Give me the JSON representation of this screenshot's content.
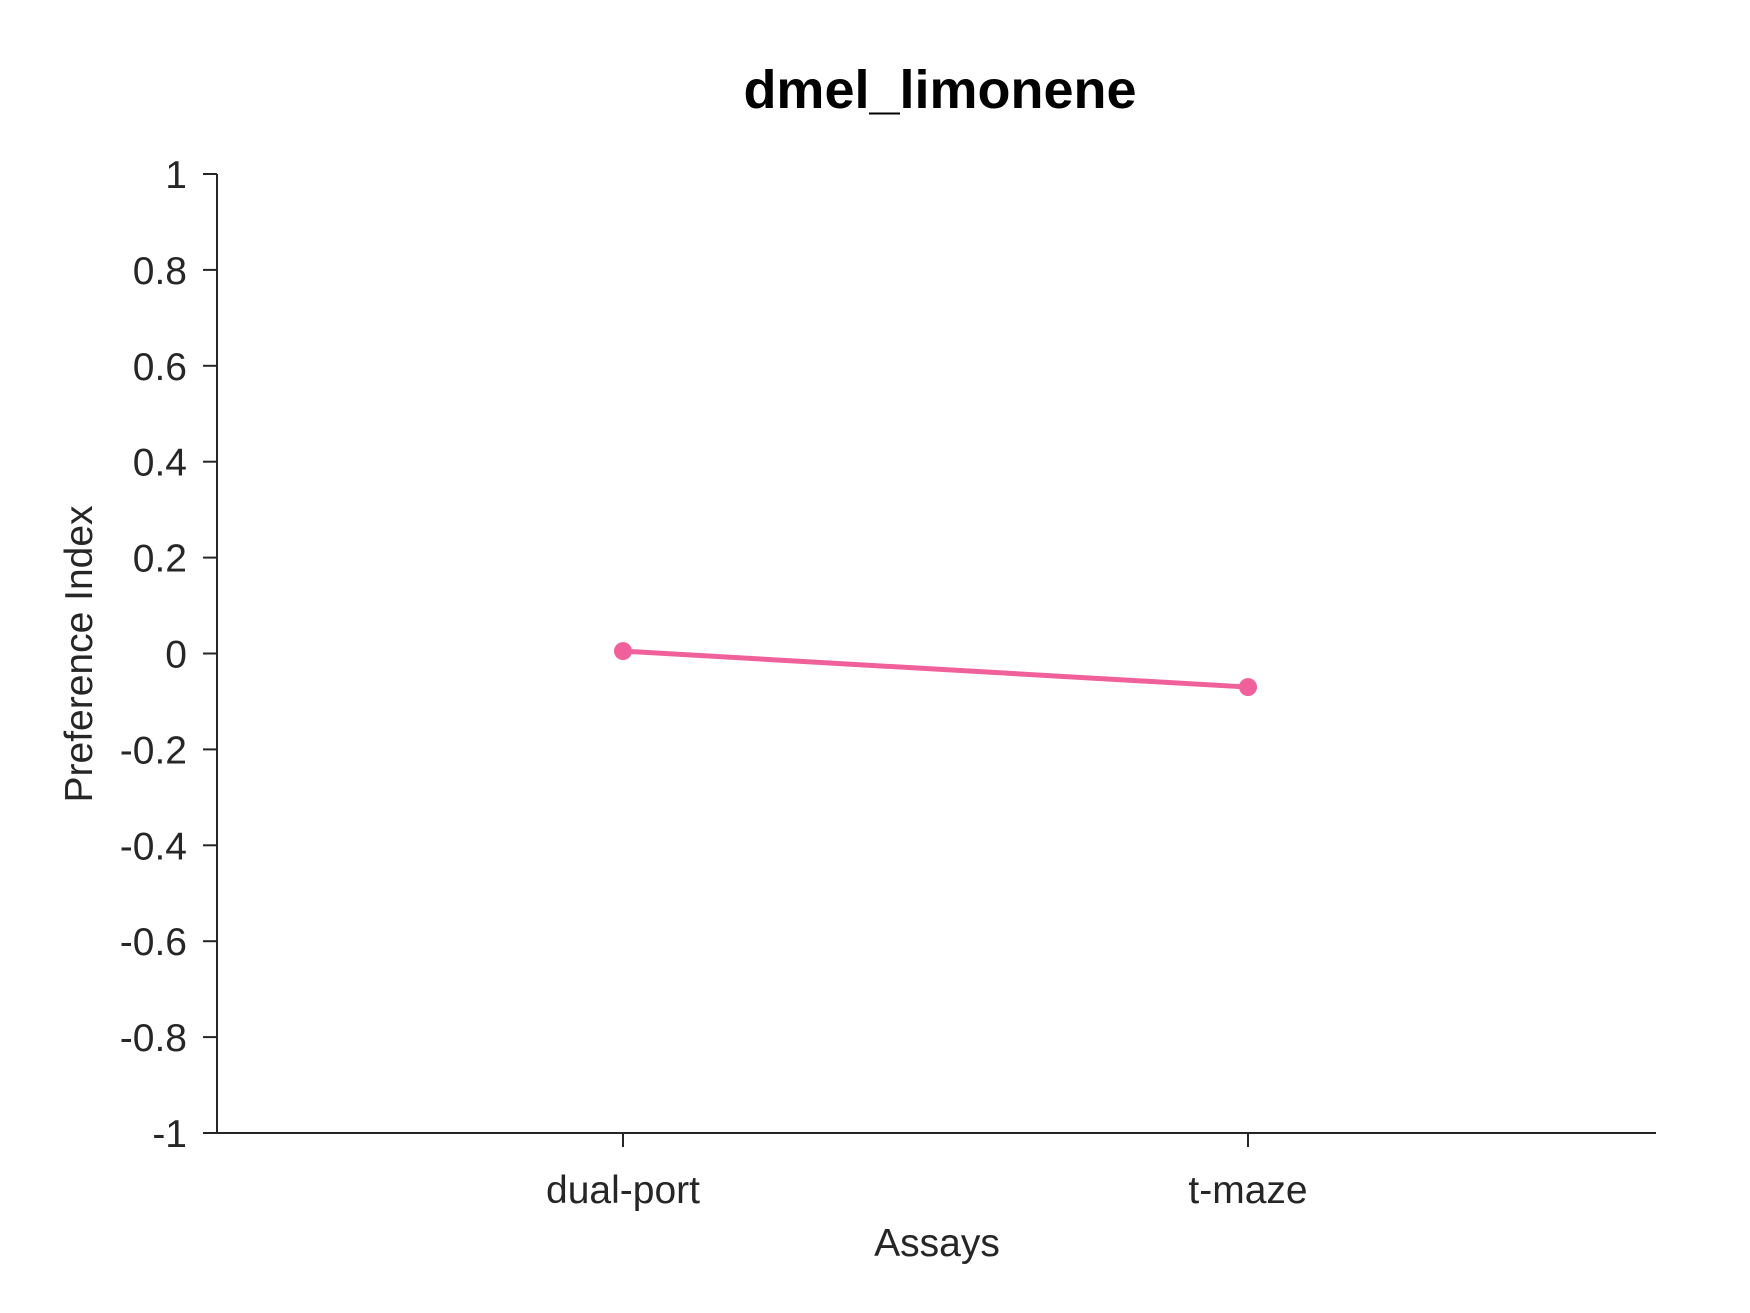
{
  "chart_data": {
    "type": "line",
    "title": "dmel_limonene",
    "xlabel": "Assays",
    "ylabel": "Preference Index",
    "categories": [
      "dual-port",
      "t-maze"
    ],
    "series": [
      {
        "values": [
          0.005,
          -0.07
        ],
        "color": "#f0609a"
      }
    ],
    "ylim": [
      -1,
      1
    ],
    "yticks": [
      "1",
      "0.8",
      "0.6",
      "0.4",
      "0.2",
      "0",
      "-0.2",
      "-0.4",
      "-0.6",
      "-0.8",
      "-1"
    ],
    "ytick_values": [
      1,
      0.8,
      0.6,
      0.4,
      0.2,
      0,
      -0.2,
      -0.4,
      -0.6,
      -0.8,
      -1
    ],
    "grid": false,
    "legend": "none"
  }
}
